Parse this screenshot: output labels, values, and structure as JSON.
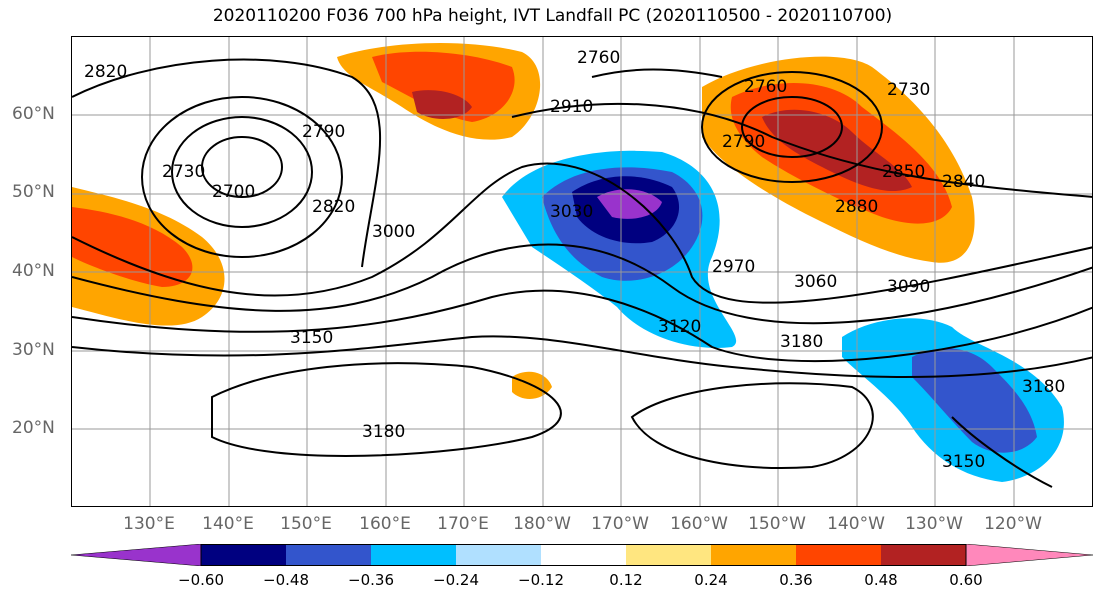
{
  "title": "2020110200 F036 700 hPa height, IVT Landfall PC (2020110500 - 2020110700)",
  "lat_labels": [
    "60°N",
    "50°N",
    "40°N",
    "30°N",
    "20°N"
  ],
  "lon_labels": [
    "130°E",
    "140°E",
    "150°E",
    "160°E",
    "170°E",
    "180°W",
    "170°W",
    "160°W",
    "150°W",
    "140°W",
    "130°W",
    "120°W"
  ],
  "colorbar": {
    "ticks": [
      "−0.60",
      "−0.48",
      "−0.36",
      "−0.24",
      "−0.12",
      "0.12",
      "0.24",
      "0.36",
      "0.48",
      "0.60"
    ],
    "colors": [
      "#9933cc",
      "#000080",
      "#3355cc",
      "#00bfff",
      "#b0e0ff",
      "#ffffff",
      "#ffe680",
      "#ffa500",
      "#ff4500",
      "#b22222",
      "#ff88bb"
    ]
  },
  "contour_labels": [
    "2820",
    "2760",
    "2730",
    "2700",
    "2790",
    "2820",
    "3000",
    "2910",
    "2760",
    "2730",
    "2850",
    "2880",
    "2790",
    "2840",
    "3030",
    "2970",
    "3060",
    "3090",
    "3120",
    "3150",
    "3180",
    "3180",
    "3180",
    "3150"
  ]
}
